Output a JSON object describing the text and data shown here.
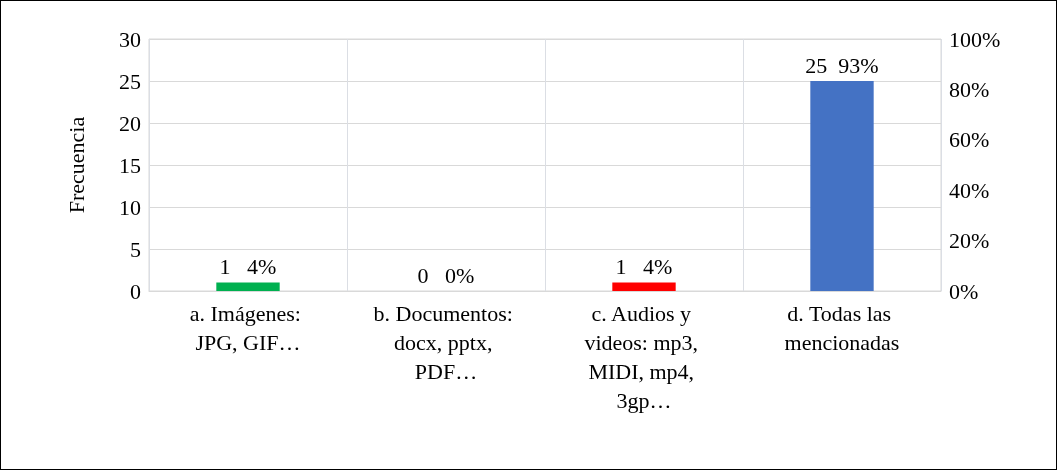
{
  "chart_data": {
    "type": "bar",
    "ylabel": "Frecuencia",
    "categories": [
      "a. Imágenes: JPG, GIF…",
      "b. Documentos: docx, pptx, PDF…",
      "c. Audios y videos: mp3, MIDI, mp4, 3gp…",
      "d. Todas las mencionadas"
    ],
    "values": [
      1,
      0,
      1,
      25
    ],
    "colors": [
      "#00b050",
      "#ffc000",
      "#ff0000",
      "#4472c4"
    ],
    "value_labels": [
      "1   4%",
      "0   0%",
      "1   4%",
      "25  93%"
    ],
    "ylim": [
      0,
      30
    ],
    "yticks": [
      0,
      5,
      10,
      15,
      20,
      25,
      30
    ],
    "y2lim": [
      0,
      100
    ],
    "y2ticks": [
      {
        "value": 0,
        "label": "0%"
      },
      {
        "value": 20,
        "label": "20%"
      },
      {
        "value": 40,
        "label": "40%"
      },
      {
        "value": 60,
        "label": "60%"
      },
      {
        "value": 80,
        "label": "80%"
      },
      {
        "value": 100,
        "label": "100%"
      }
    ],
    "grid": true
  }
}
